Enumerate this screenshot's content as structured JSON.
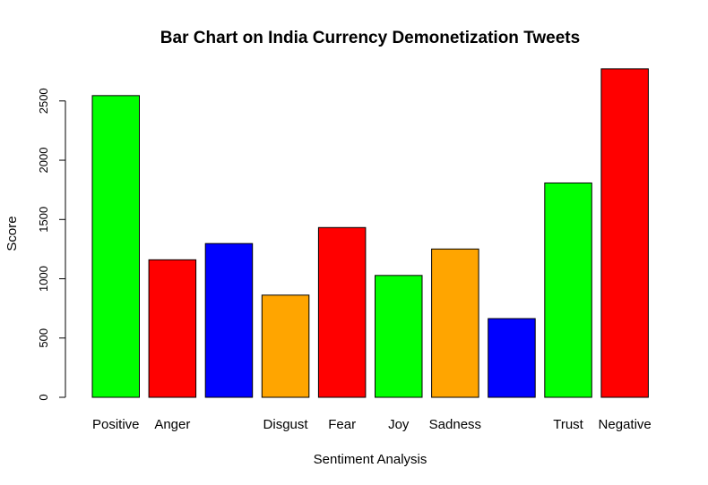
{
  "chart_data": {
    "type": "bar",
    "title": "Bar Chart on India Currency Demonetization Tweets",
    "xlabel": "Sentiment Analysis",
    "ylabel": "Score",
    "ylim": [
      0,
      2800
    ],
    "yticks": [
      0,
      500,
      1000,
      1500,
      2000,
      2500
    ],
    "categories": [
      "Positive",
      "Anger",
      "",
      "Disgust",
      "Fear",
      "Joy",
      "Sadness",
      "",
      "Trust",
      "Negative"
    ],
    "values": [
      2545,
      1160,
      1297,
      862,
      1432,
      1028,
      1251,
      664,
      1808,
      2771
    ],
    "colors": [
      "#00ff00",
      "#ff0000",
      "#0000ff",
      "#ffa500",
      "#ff0000",
      "#00ff00",
      "#ffa500",
      "#0000ff",
      "#00ff00",
      "#ff0000"
    ],
    "grid": false,
    "legend": "none"
  }
}
